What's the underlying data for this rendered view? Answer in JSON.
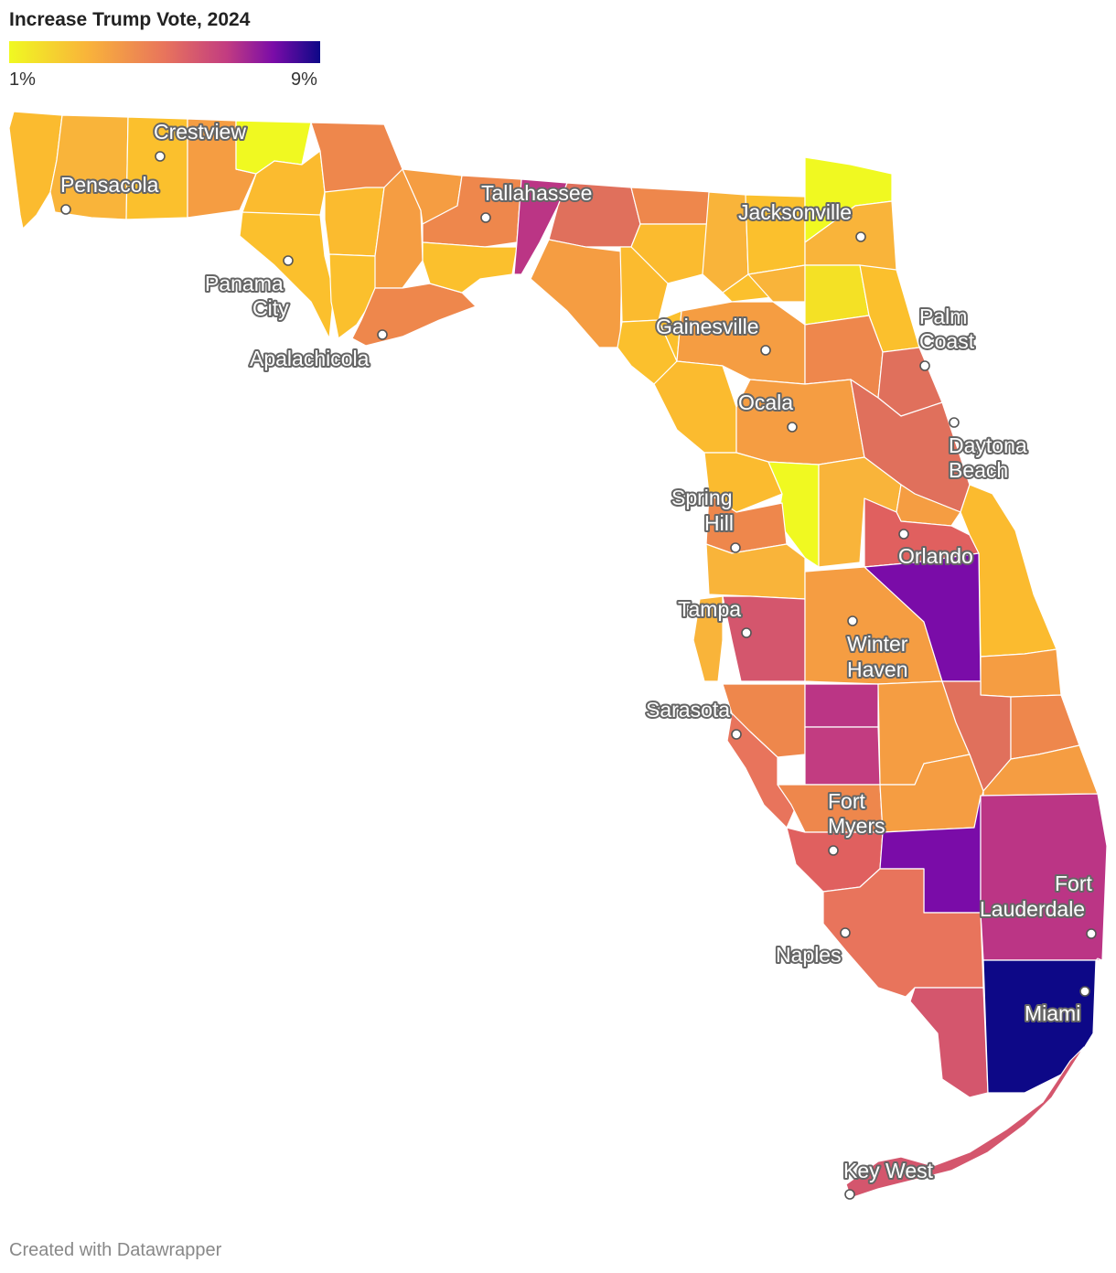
{
  "title": "Increase Trump Vote, 2024",
  "legend": {
    "min_label": "1%",
    "max_label": "9%",
    "gradient": [
      "#f0f921",
      "#f9b43a",
      "#e8745c",
      "#c23c81",
      "#7a0ca8",
      "#0d0887"
    ]
  },
  "credit": "Created with Datawrapper",
  "colors": {
    "yellow": "#f0f921",
    "light_orange": "#fbbb2f",
    "orange": "#f59d42",
    "dark_orange": "#ee874c",
    "salmon": "#e0705c",
    "pink": "#d4566d",
    "magenta": "#bb3585",
    "purple": "#7a0ca8",
    "navy": "#0d0887"
  },
  "cities": [
    {
      "name": "Crestview"
    },
    {
      "name": "Pensacola"
    },
    {
      "name": "Tallahassee"
    },
    {
      "name": "Jacksonville"
    },
    {
      "name": "Panama City"
    },
    {
      "name": "Apalachicola"
    },
    {
      "name": "Palm Coast"
    },
    {
      "name": "Gainesville"
    },
    {
      "name": "Ocala"
    },
    {
      "name": "Daytona Beach"
    },
    {
      "name": "Spring Hill"
    },
    {
      "name": "Orlando"
    },
    {
      "name": "Tampa"
    },
    {
      "name": "Winter Haven"
    },
    {
      "name": "Sarasota"
    },
    {
      "name": "Fort Myers"
    },
    {
      "name": "Fort Lauderdale"
    },
    {
      "name": "Naples"
    },
    {
      "name": "Miami"
    },
    {
      "name": "Key West"
    }
  ]
}
